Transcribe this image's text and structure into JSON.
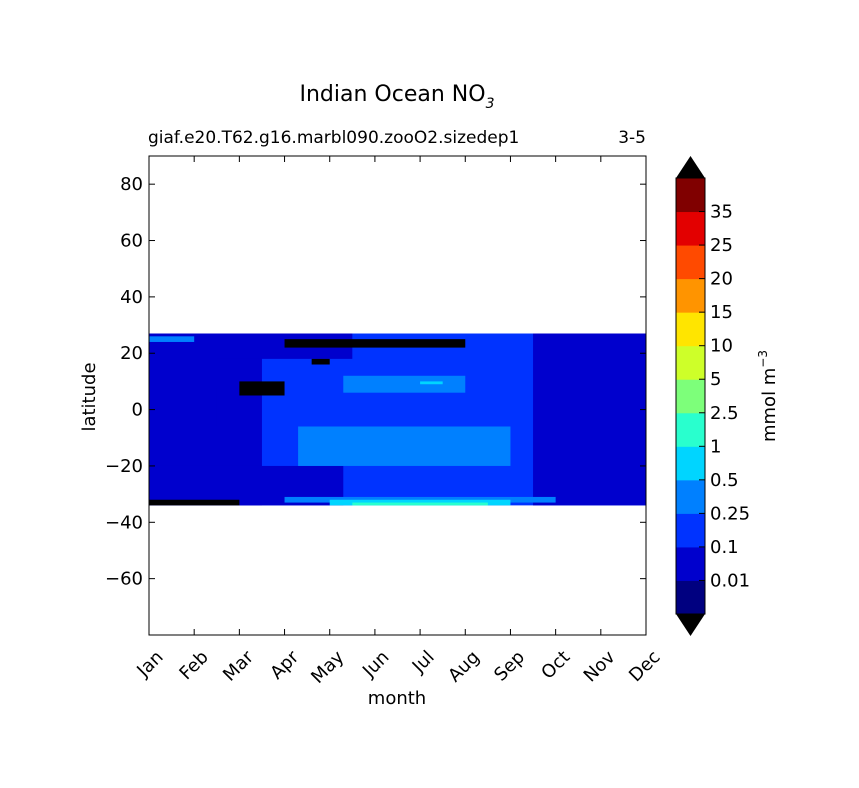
{
  "chart_data": {
    "type": "heatmap",
    "title": {
      "main": "Indian Ocean NO",
      "sub": "3"
    },
    "subtitle_left": "giaf.e20.T62.g16.marbl090.zooO2.sizedep1",
    "subtitle_right": "3-5",
    "xlabel": "month",
    "ylabel": "latitude",
    "x_ticks": [
      "Jan",
      "Feb",
      "Mar",
      "Apr",
      "May",
      "Jun",
      "Jul",
      "Aug",
      "Sep",
      "Oct",
      "Nov",
      "Dec"
    ],
    "x_range": [
      0,
      11
    ],
    "ylim": [
      -80,
      90
    ],
    "y_ticks": [
      80,
      60,
      40,
      20,
      0,
      -20,
      -40,
      -60
    ],
    "y_tick_labels": [
      "80",
      "60",
      "40",
      "20",
      "0",
      "−20",
      "−40",
      "−60"
    ],
    "data_lat_range": [
      -34,
      27
    ],
    "colorbar": {
      "label": "mmol m",
      "label_sup": "−3",
      "levels": [
        0,
        0.01,
        0.1,
        0.25,
        0.5,
        1,
        2.5,
        5,
        10,
        15,
        20,
        25,
        35,
        40
      ],
      "tick_labels": [
        "0.01",
        "0.1",
        "0.25",
        "0.5",
        "1",
        "2.5",
        "5",
        "10",
        "15",
        "20",
        "25",
        "35"
      ],
      "colors": [
        "#000080",
        "#0000cd",
        "#0033ff",
        "#0080ff",
        "#00d5ff",
        "#29ffce",
        "#7dff7a",
        "#ceff29",
        "#ffe500",
        "#ff9400",
        "#ff4a00",
        "#e30000",
        "#800000"
      ],
      "under_color": "#000000",
      "over_color": "#000000"
    },
    "regions": [
      {
        "level": 2,
        "lat": [
          -34,
          27
        ],
        "month": [
          0,
          11
        ]
      },
      {
        "level": 1,
        "lat": [
          -34,
          27
        ],
        "month": [
          0,
          2.5
        ]
      },
      {
        "level": 1,
        "lat": [
          -34,
          -20
        ],
        "month": [
          0,
          4.3
        ]
      },
      {
        "level": 1,
        "lat": [
          -34,
          27
        ],
        "month": [
          8.5,
          11
        ]
      },
      {
        "level": 1,
        "lat": [
          18,
          27
        ],
        "month": [
          1.5,
          4.5
        ]
      },
      {
        "level": 1,
        "lat": [
          -6,
          8
        ],
        "month": [
          0,
          1.5
        ]
      },
      {
        "level": 3,
        "lat": [
          -20,
          -6
        ],
        "month": [
          3.3,
          8
        ]
      },
      {
        "level": 3,
        "lat": [
          6,
          12
        ],
        "month": [
          4.3,
          7
        ]
      },
      {
        "level": 4,
        "lat": [
          9,
          10
        ],
        "month": [
          6,
          6.5
        ]
      },
      {
        "level": 3,
        "lat": [
          -33,
          -31
        ],
        "month": [
          3,
          9
        ]
      },
      {
        "level": 4,
        "lat": [
          -34,
          -32
        ],
        "month": [
          4,
          8
        ]
      },
      {
        "level": 5,
        "lat": [
          -34,
          -33
        ],
        "month": [
          4.5,
          7.5
        ]
      },
      {
        "level": 3,
        "lat": [
          24,
          26
        ],
        "month": [
          0,
          1
        ]
      },
      {
        "level": -1,
        "lat": [
          5,
          10
        ],
        "month": [
          2,
          3
        ]
      },
      {
        "level": -1,
        "lat": [
          16,
          18
        ],
        "month": [
          3.6,
          4
        ]
      },
      {
        "level": -1,
        "lat": [
          22,
          25
        ],
        "month": [
          3,
          7
        ]
      },
      {
        "level": -1,
        "lat": [
          -34,
          -32
        ],
        "month": [
          0,
          2
        ]
      }
    ]
  }
}
